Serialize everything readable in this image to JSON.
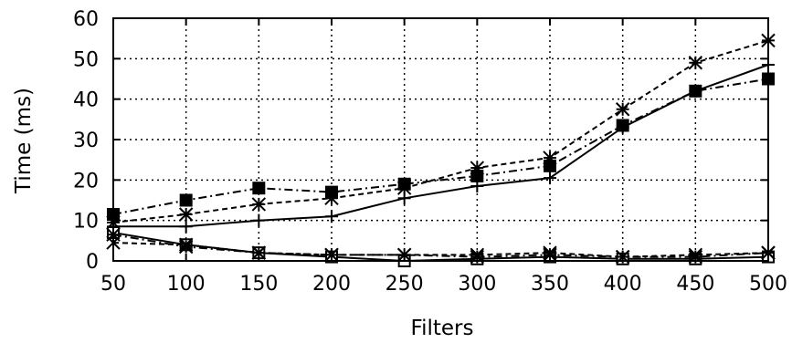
{
  "chart_data": {
    "type": "line",
    "title": "",
    "xlabel": "Filters",
    "ylabel": "Time (ms)",
    "x": [
      50,
      100,
      150,
      200,
      250,
      300,
      350,
      400,
      450,
      500
    ],
    "xlim": [
      50,
      500
    ],
    "ylim": [
      0,
      60
    ],
    "xticks": [
      "50",
      "100",
      "150",
      "200",
      "250",
      "300",
      "350",
      "400",
      "450",
      "500"
    ],
    "yticks": [
      "0",
      "10",
      "20",
      "30",
      "40",
      "50",
      "60"
    ],
    "grid": true,
    "legend": "none",
    "series": [
      {
        "marker": "plus",
        "dash": "solid",
        "values": [
          8.5,
          8.5,
          10,
          11,
          15.5,
          18.5,
          20.5,
          33,
          42,
          48.5
        ]
      },
      {
        "marker": "asterisk",
        "dash": "dashed",
        "values": [
          9.5,
          11.5,
          14,
          15.5,
          18,
          23,
          25.5,
          37.5,
          49,
          54.5
        ]
      },
      {
        "marker": "filled-square",
        "dash": "dashdot",
        "values": [
          11.5,
          15,
          18,
          17,
          19,
          21,
          23.5,
          33.5,
          42,
          45
        ]
      },
      {
        "marker": "open-square",
        "dash": "solid",
        "values": [
          7,
          4,
          2,
          1,
          0,
          0.5,
          1,
          0.5,
          0.5,
          1
        ]
      },
      {
        "marker": "cross",
        "dash": "dashed",
        "values": [
          4.5,
          4,
          2,
          1.5,
          1.5,
          1.5,
          2,
          1,
          1.5,
          2
        ]
      },
      {
        "marker": "asterisk",
        "dash": "dashdot",
        "values": [
          6.5,
          3.5,
          2,
          1.5,
          1.5,
          1,
          1.5,
          1,
          1,
          2
        ]
      }
    ]
  }
}
